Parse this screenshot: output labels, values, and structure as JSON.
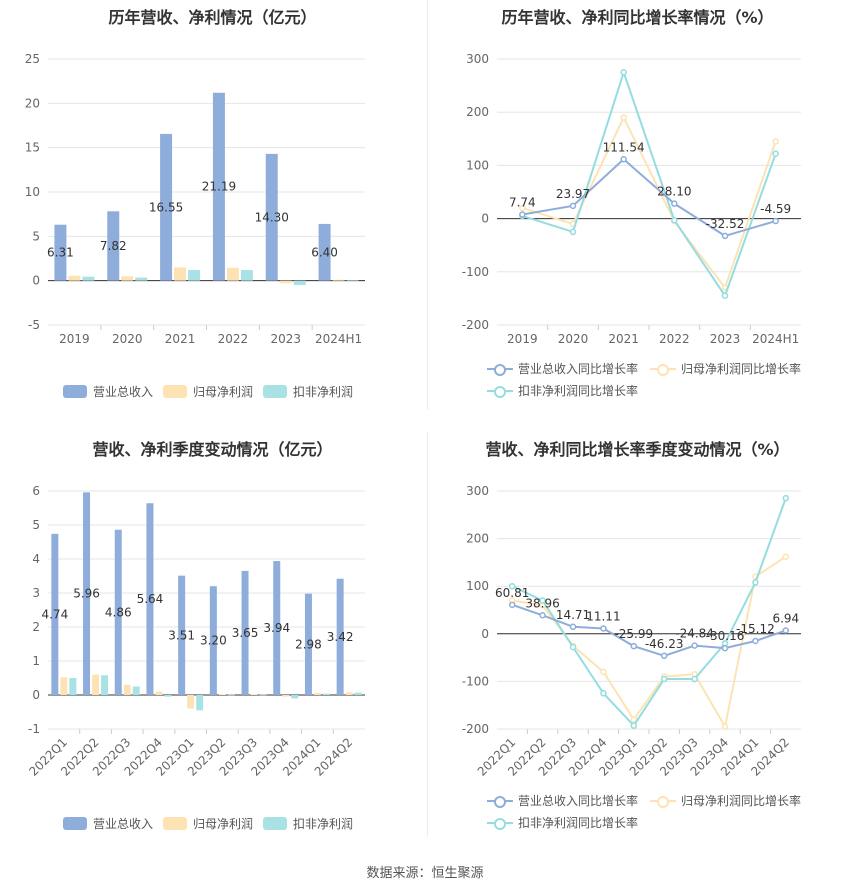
{
  "footer": "数据来源：恒生聚源",
  "colors": {
    "revenue": "#8eaddb",
    "net": "#fde3b3",
    "deducted": "#a9e2e5",
    "revenue_line": "#8eaddb",
    "net_line": "#fde3b3",
    "deducted_line": "#93dde0"
  },
  "legend_bars": [
    "营业总收入",
    "归母净利润",
    "扣非净利润"
  ],
  "legend_lines": [
    "营业总收入同比增长率",
    "归母净利润同比增长率",
    "扣非净利润同比增长率"
  ],
  "chart_data": [
    {
      "type": "bar",
      "title": "历年营收、净利情况（亿元）",
      "categories": [
        "2019",
        "2020",
        "2021",
        "2022",
        "2023",
        "2024H1"
      ],
      "ylim": [
        -5,
        25
      ],
      "yticks": [
        -5,
        0,
        5,
        10,
        15,
        20,
        25
      ],
      "series": [
        {
          "name": "营业总收入",
          "values": [
            6.31,
            7.82,
            16.55,
            21.19,
            14.3,
            6.4
          ],
          "labels": [
            "6.31",
            "7.82",
            "16.55",
            "21.19",
            "14.30",
            "6.40"
          ]
        },
        {
          "name": "归母净利润",
          "values": [
            0.55,
            0.5,
            1.5,
            1.45,
            -0.3,
            0.1
          ]
        },
        {
          "name": "扣非净利润",
          "values": [
            0.45,
            0.35,
            1.2,
            1.2,
            -0.5,
            0.08
          ]
        }
      ]
    },
    {
      "type": "line",
      "title": "历年营收、净利同比增长率情况（%）",
      "categories": [
        "2019",
        "2020",
        "2021",
        "2022",
        "2023",
        "2024H1"
      ],
      "ylim": [
        -200,
        300
      ],
      "yticks": [
        -200,
        -100,
        0,
        100,
        200,
        300
      ],
      "series": [
        {
          "name": "营业总收入同比增长率",
          "values": [
            7.74,
            23.97,
            111.54,
            28.1,
            -32.52,
            -4.59
          ],
          "labels": [
            "7.74",
            "23.97",
            "111.54",
            "28.10",
            "-32.52",
            "-4.59"
          ]
        },
        {
          "name": "归母净利润同比增长率",
          "values": [
            20,
            -10,
            190,
            -5,
            -130,
            145
          ]
        },
        {
          "name": "扣非净利润同比增长率",
          "values": [
            5,
            -25,
            275,
            -3,
            -145,
            122
          ]
        }
      ]
    },
    {
      "type": "bar",
      "title": "营收、净利季度变动情况（亿元）",
      "categories": [
        "2022Q1",
        "2022Q2",
        "2022Q3",
        "2022Q4",
        "2023Q1",
        "2023Q2",
        "2023Q3",
        "2023Q4",
        "2024Q1",
        "2024Q2"
      ],
      "ylim": [
        -1,
        6
      ],
      "yticks": [
        -1,
        0,
        1,
        2,
        3,
        4,
        5,
        6
      ],
      "series": [
        {
          "name": "营业总收入",
          "values": [
            4.74,
            5.96,
            4.86,
            5.64,
            3.51,
            3.2,
            3.65,
            3.94,
            2.98,
            3.42
          ],
          "labels": [
            "4.74",
            "5.96",
            "4.86",
            "5.64",
            "3.51",
            "3.20",
            "3.65",
            "3.94",
            "2.98",
            "3.42"
          ]
        },
        {
          "name": "归母净利润",
          "values": [
            0.52,
            0.6,
            0.3,
            0.1,
            -0.4,
            0.02,
            0.02,
            -0.05,
            0.06,
            0.08
          ]
        },
        {
          "name": "扣非净利润",
          "values": [
            0.5,
            0.58,
            0.25,
            -0.05,
            -0.45,
            0.01,
            0.01,
            -0.1,
            0.04,
            0.07
          ]
        }
      ]
    },
    {
      "type": "line",
      "title": "营收、净利同比增长率季度变动情况（%）",
      "categories": [
        "2022Q1",
        "2022Q2",
        "2022Q3",
        "2022Q4",
        "2023Q1",
        "2023Q2",
        "2023Q3",
        "2023Q4",
        "2024Q1",
        "2024Q2"
      ],
      "ylim": [
        -200,
        300
      ],
      "yticks": [
        -200,
        -100,
        0,
        100,
        200,
        300
      ],
      "series": [
        {
          "name": "营业总收入同比增长率",
          "values": [
            60.81,
            38.96,
            14.71,
            11.11,
            -25.99,
            -46.23,
            -24.84,
            -30.16,
            -15.12,
            6.94
          ],
          "labels": [
            "60.81",
            "38.96",
            "14.71",
            "11.11",
            "-25.99",
            "-46.23",
            "-24.84",
            "-30.16",
            "-15.12",
            "6.94"
          ]
        },
        {
          "name": "归母净利润同比增长率",
          "values": [
            70,
            60,
            -25,
            -80,
            -180,
            -90,
            -85,
            -195,
            120,
            162
          ]
        },
        {
          "name": "扣非净利润同比增长率",
          "values": [
            100,
            70,
            -28,
            -125,
            -193,
            -95,
            -95,
            -20,
            108,
            285
          ]
        }
      ]
    }
  ]
}
